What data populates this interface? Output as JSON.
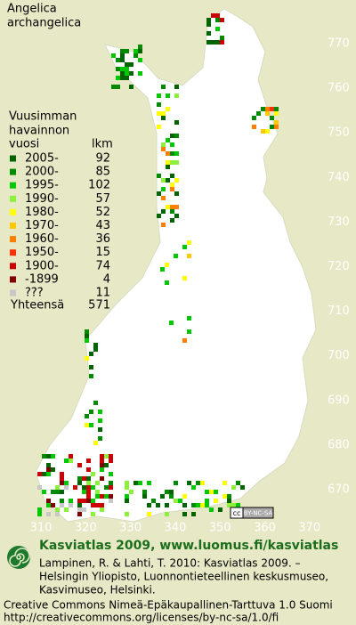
{
  "title": [
    "Angelica",
    "archangelica"
  ],
  "legend": {
    "heading": [
      "Vuusimman",
      "havainnon",
      "vuosi"
    ],
    "count_header": "lkm",
    "entries": [
      {
        "label": "2005-",
        "count": "92",
        "color": "#006400"
      },
      {
        "label": "2000-",
        "count": "85",
        "color": "#008a00"
      },
      {
        "label": "1995-",
        "count": "102",
        "color": "#00c800"
      },
      {
        "label": "1990-",
        "count": "57",
        "color": "#8cf03c"
      },
      {
        "label": "1980-",
        "count": "52",
        "color": "#ffff00"
      },
      {
        "label": "1970-",
        "count": "43",
        "color": "#ffc800"
      },
      {
        "label": "1960-",
        "count": "36",
        "color": "#ff8000"
      },
      {
        "label": "1950-",
        "count": "15",
        "color": "#ff3000"
      },
      {
        "label": "1900-",
        "count": "74",
        "color": "#cc0000"
      },
      {
        "label": "-1899",
        "count": "4",
        "color": "#800000"
      },
      {
        "label": "???",
        "count": "11",
        "color": "#c8c8c8"
      }
    ],
    "total": {
      "label": "Yhteensä",
      "count": "571"
    }
  },
  "grid_labels": {
    "north": [
      "770",
      "760",
      "750",
      "740",
      "730",
      "720",
      "710",
      "700",
      "690",
      "680",
      "670"
    ],
    "east": [
      "310",
      "320",
      "330",
      "340",
      "350",
      "360",
      "370"
    ]
  },
  "license_badge": "BY-NC-SA",
  "footer": {
    "site": "Kasviatlas 2009, www.luomus.fi/kasviatlas",
    "citation": [
      "Lampinen, R. & Lahti, T. 2010: Kasviatlas 2009. –",
      "Helsingin Yliopisto, Luonnontieteellinen keskusmuseo,",
      "Kasvimuseo, Helsinki."
    ],
    "license": [
      "Creative Commons Nimeä-Epäkaupallinen-Tarttuva 1.0 Suomi",
      "http://creativecommons.org/licenses/by-nc-sa/1.0/fi"
    ]
  }
}
